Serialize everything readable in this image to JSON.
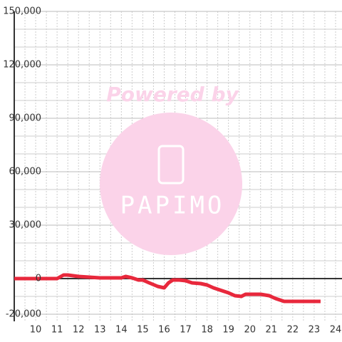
{
  "chart_data": {
    "type": "line",
    "watermark": "Powered by",
    "watermark_logo": "PAPIMO",
    "x": [
      9,
      11,
      11.3,
      11.5,
      12,
      12.5,
      13,
      14,
      14.2,
      14.5,
      14.8,
      15,
      15.3,
      15.7,
      16,
      16.2,
      16.4,
      16.7,
      17,
      17.3,
      17.7,
      18,
      18.3,
      18.7,
      19,
      19.3,
      19.6,
      19.8,
      20,
      20.5,
      20.9,
      21.2,
      21.6,
      22,
      23.3
    ],
    "series": [
      {
        "color": "#e8283c",
        "values": [
          0,
          0,
          2000,
          2000,
          1200,
          800,
          400,
          400,
          1200,
          400,
          -800,
          -800,
          -2400,
          -4400,
          -5200,
          -2400,
          -800,
          -800,
          -1200,
          -2400,
          -2800,
          -3600,
          -5200,
          -6800,
          -8000,
          -9600,
          -10000,
          -8800,
          -8800,
          -8800,
          -9600,
          -11200,
          -12800,
          -12800,
          -12800
        ]
      }
    ],
    "xlim": [
      9,
      24.3
    ],
    "xticks": [
      10,
      11,
      12,
      13,
      14,
      15,
      16,
      17,
      18,
      19,
      20,
      21,
      22,
      23,
      24
    ],
    "ylim": [
      -24000,
      150000
    ],
    "yticks": [
      {
        "value": -20000,
        "label": "-20,000"
      },
      0,
      {
        "value": 30000,
        "label": "30,000"
      },
      {
        "value": 60000,
        "label": "60,000"
      },
      {
        "value": 90000,
        "label": "90,000"
      },
      {
        "value": 120000,
        "label": "120,000"
      },
      {
        "value": 150000,
        "label": "150,000"
      }
    ],
    "grid": true
  }
}
